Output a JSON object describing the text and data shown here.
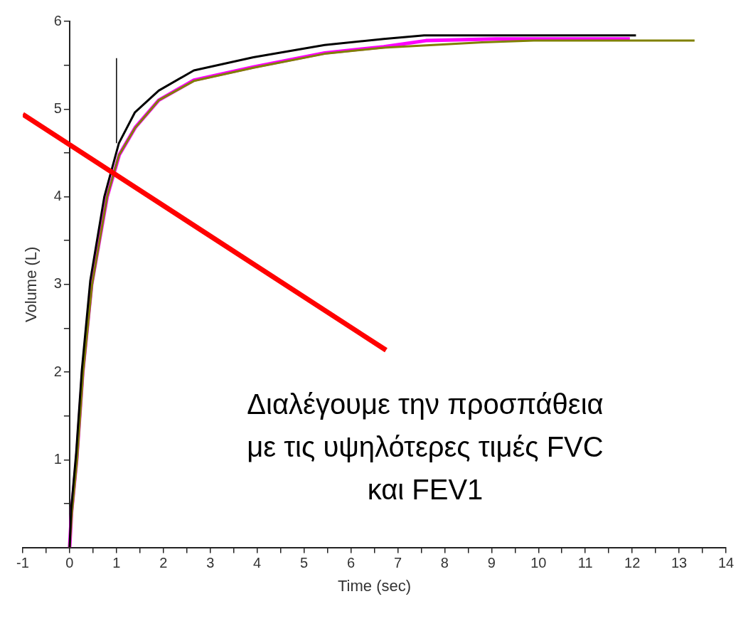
{
  "chart_data": {
    "type": "line",
    "xlabel": "Time (sec)",
    "ylabel": "Volume (L)",
    "xlim": [
      -1,
      14
    ],
    "xticks": [
      -1,
      {
        "value": -0.5,
        "label": null
      },
      0,
      {
        "value": 0.5,
        "label": null
      },
      1,
      {
        "value": 1.5,
        "label": null
      },
      2,
      {
        "value": 2.5,
        "label": null
      },
      3,
      {
        "value": 3.5,
        "label": null
      },
      4,
      {
        "value": 4.5,
        "label": null
      },
      5,
      {
        "value": 5.5,
        "label": null
      },
      6,
      {
        "value": 6.5,
        "label": null
      },
      7,
      {
        "value": 7.5,
        "label": null
      },
      8,
      {
        "value": 8.5,
        "label": null
      },
      9,
      {
        "value": 9.5,
        "label": null
      },
      10,
      {
        "value": 10.5,
        "label": null
      },
      11,
      {
        "value": 11.5,
        "label": null
      },
      12,
      {
        "value": 12.5,
        "label": null
      },
      13,
      {
        "value": 13.5,
        "label": null
      },
      14
    ],
    "ylim": [
      0,
      6
    ],
    "yticks": [
      {
        "value": 0,
        "label": null
      },
      {
        "value": 0.5,
        "label": null
      },
      1,
      {
        "value": 1.5,
        "label": null
      },
      2,
      {
        "value": 2.5,
        "label": null
      },
      3,
      {
        "value": 3.5,
        "label": null
      },
      4,
      {
        "value": 4.5,
        "label": null
      },
      5,
      {
        "value": 5.5,
        "label": null
      },
      6
    ],
    "grid": false,
    "legend": false,
    "series": [
      {
        "color": "#ff0000",
        "x": [
          -1,
          6.75
        ],
        "values": [
          4.94,
          2.25
        ]
      },
      {
        "color": "#000000",
        "x": [
          1,
          1
        ],
        "values": [
          4.61,
          5.58
        ]
      },
      {
        "color": "#000000",
        "x": [
          0,
          0.03,
          0.14,
          0.26,
          0.44,
          0.74,
          1.05,
          1.39,
          1.9,
          2.65,
          3.92,
          5.44,
          6.7,
          7.56,
          12.08
        ],
        "values": [
          0,
          0.42,
          1.08,
          2.02,
          3.04,
          4.0,
          4.61,
          4.96,
          5.21,
          5.44,
          5.59,
          5.73,
          5.8,
          5.84,
          5.84
        ]
      },
      {
        "color": "#808000",
        "x": [
          0,
          0.05,
          0.16,
          0.29,
          0.48,
          0.8,
          1.05,
          1.39,
          1.9,
          2.65,
          3.92,
          5.44,
          6.7,
          8.8,
          9.9,
          13.33
        ],
        "values": [
          0,
          0.4,
          1.0,
          2.0,
          3.0,
          4.0,
          4.47,
          4.78,
          5.1,
          5.32,
          5.47,
          5.63,
          5.7,
          5.76,
          5.78,
          5.78
        ]
      },
      {
        "color": "#ff00ff",
        "x": [
          0,
          0.04,
          0.15,
          0.28,
          0.47,
          0.8,
          1.06,
          1.4,
          1.9,
          2.65,
          3.92,
          5.44,
          6.7,
          7.6,
          9.1,
          11.95
        ],
        "values": [
          0,
          0.4,
          1.0,
          2.0,
          3.0,
          4.0,
          4.48,
          4.79,
          5.1,
          5.33,
          5.48,
          5.64,
          5.71,
          5.78,
          5.8,
          5.8
        ]
      }
    ],
    "annotations": [
      "Διαλέγουμε την προσπάθεια\nμε τις υψηλότερες τιμές FVC\nκαι FEV1"
    ]
  }
}
